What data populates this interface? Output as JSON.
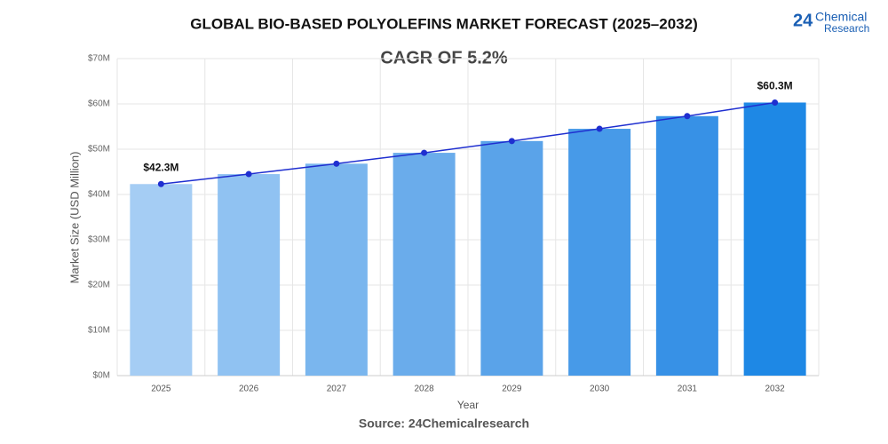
{
  "chart_data": {
    "type": "bar_line",
    "title": "GLOBAL BIO-BASED POLYOLEFINS MARKET FORECAST (2025–2032)",
    "subtitle": "CAGR OF 5.2%",
    "x_label": "Year",
    "y_label": "Market Size (USD Million)",
    "source": "Source: 24Chemicalresearch",
    "logo": {
      "number": "24",
      "line1": "Chemical",
      "line2": "Research"
    },
    "categories": [
      "2025",
      "2026",
      "2027",
      "2028",
      "2029",
      "2030",
      "2031",
      "2032"
    ],
    "values": [
      42.3,
      44.5,
      46.8,
      49.2,
      51.8,
      54.5,
      57.3,
      60.3
    ],
    "value_labels": [
      "$42.3M",
      null,
      null,
      null,
      null,
      null,
      null,
      "$60.3M"
    ],
    "colors": [
      "#a5cdf4",
      "#90c2f2",
      "#7ab6ee",
      "#6aaceb",
      "#5aa3e9",
      "#479ae8",
      "#3791e6",
      "#1e88e5"
    ],
    "line_color": "#1f2fd0",
    "ylim": [
      0,
      70
    ],
    "yticks": [
      {
        "value": 0,
        "label": "$0M"
      },
      {
        "value": 10,
        "label": "$10M"
      },
      {
        "value": 20,
        "label": "$20M"
      },
      {
        "value": 30,
        "label": "$30M"
      },
      {
        "value": 40,
        "label": "$40M"
      },
      {
        "value": 50,
        "label": "$50M"
      },
      {
        "value": 60,
        "label": "$60M"
      },
      {
        "value": 70,
        "label": "$70M"
      }
    ],
    "grid": true
  }
}
